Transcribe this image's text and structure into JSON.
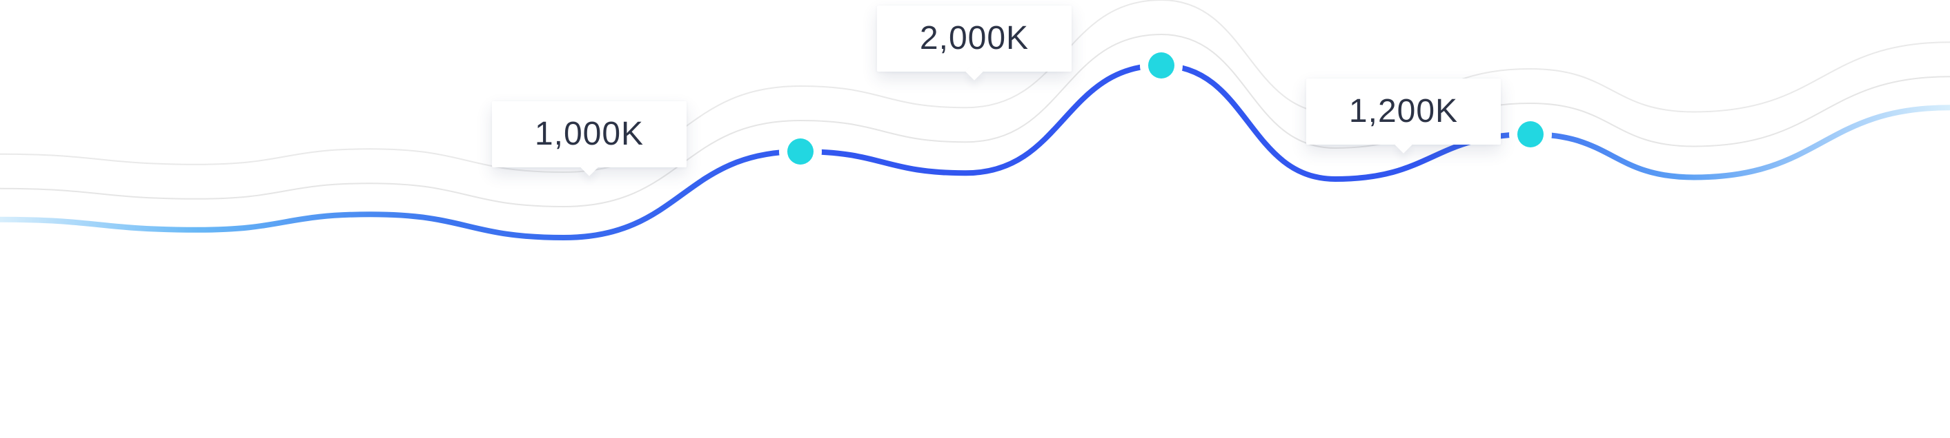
{
  "chart_data": {
    "type": "line",
    "grid": false,
    "legend": "none",
    "title": "",
    "xlabel": "",
    "ylabel": "",
    "colors": {
      "line_start": "#d7eefc",
      "line_mid_light": "#69b8f6",
      "line_main": "#3257ef",
      "marker": "#22d7e1",
      "marker_ring": "#ffffff",
      "callout_text": "#2c3346",
      "ghost_line": "#e5e5e5"
    },
    "series": [
      {
        "values": [
          210,
          90,
          270,
          0,
          1000,
          750,
          2000,
          680,
          1200,
          700,
          1510
        ]
      }
    ],
    "annotations": [
      {
        "index": 4,
        "label": "1,000K",
        "value": 1000
      },
      {
        "index": 6,
        "label": "2,000K",
        "value": 2000
      },
      {
        "index": 8,
        "label": "1,200K",
        "value": 1200
      }
    ]
  }
}
